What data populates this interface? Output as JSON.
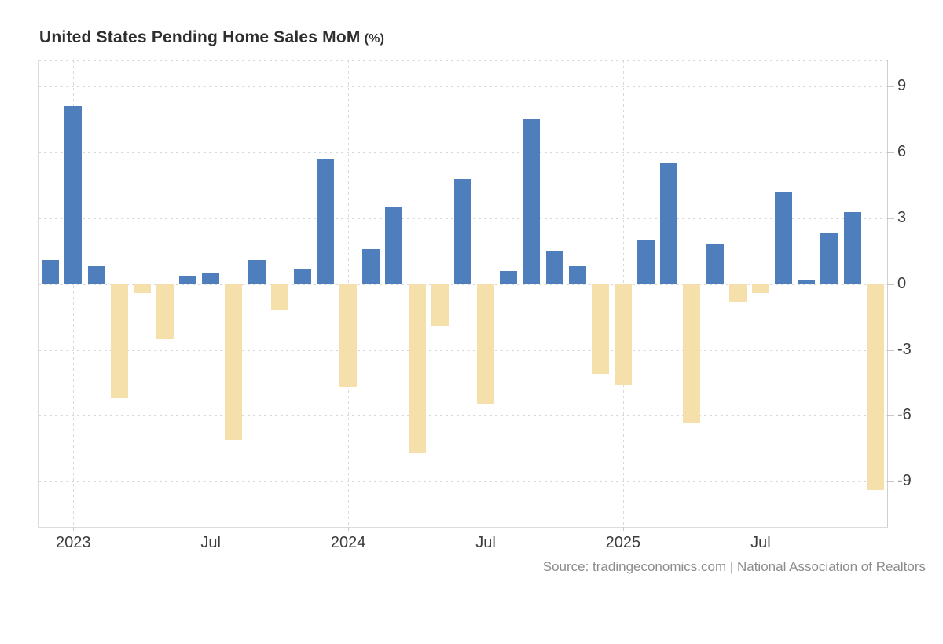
{
  "title": {
    "text": "United States Pending Home Sales MoM",
    "unit": "(%)"
  },
  "source_line": "Source: tradingeconomics.com | National Association of Realtors",
  "chart_data": {
    "type": "bar",
    "title": "United States Pending Home Sales MoM (%)",
    "series_name": "Pending Home Sales MoM (%)",
    "x": [
      "2022-12",
      "2023-01",
      "2023-02",
      "2023-03",
      "2023-04",
      "2023-05",
      "2023-06",
      "2023-07",
      "2023-08",
      "2023-09",
      "2023-10",
      "2023-11",
      "2023-12",
      "2024-01",
      "2024-02",
      "2024-03",
      "2024-04",
      "2024-05",
      "2024-06",
      "2024-07",
      "2024-08",
      "2024-09",
      "2024-10",
      "2024-11",
      "2024-12",
      "2025-01",
      "2025-02",
      "2025-03",
      "2025-04",
      "2025-05",
      "2025-06",
      "2025-07",
      "2025-08",
      "2025-09",
      "2025-10",
      "2025-11",
      "2025-12"
    ],
    "values": [
      1.1,
      8.1,
      0.8,
      -5.2,
      -0.4,
      -2.5,
      0.4,
      0.5,
      -7.1,
      1.1,
      -1.2,
      0.7,
      5.7,
      -4.7,
      1.6,
      3.5,
      -7.7,
      -1.9,
      4.8,
      -5.5,
      0.6,
      7.5,
      1.5,
      0.8,
      -4.1,
      -4.6,
      2.0,
      5.5,
      -6.3,
      1.8,
      -0.8,
      -0.4,
      4.2,
      0.2,
      2.3,
      3.3,
      -9.4
    ],
    "x_tick_labels": [
      "2023",
      "Jul",
      "2024",
      "Jul",
      "2025",
      "Jul"
    ],
    "x_tick_month_index": [
      1,
      7,
      13,
      19,
      25,
      31
    ],
    "y_ticks": [
      9,
      6,
      3,
      0,
      -3,
      -6,
      -9
    ],
    "ylim": [
      -11.1,
      10.2
    ],
    "grid": "dotted",
    "legend_position": "none",
    "colors": {
      "positive_bar": "#4e7ebb",
      "negative_bar": "#f5dfaa"
    }
  }
}
